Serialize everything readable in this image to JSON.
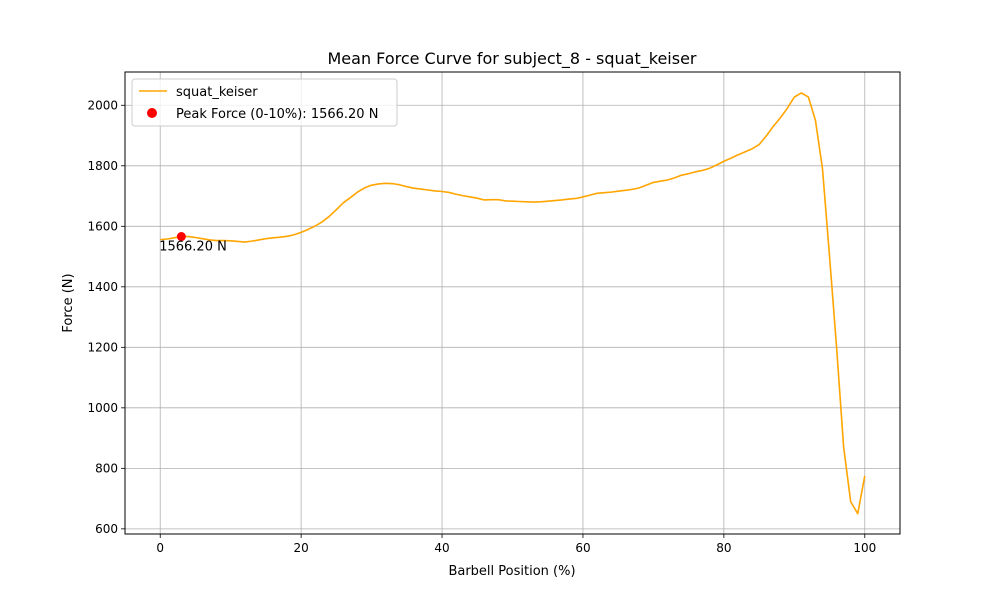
{
  "chart_data": {
    "type": "line",
    "title": "Mean Force Curve for subject_8 - squat_keiser",
    "xlabel": "Barbell Position (%)",
    "ylabel": "Force (N)",
    "xlim": [
      -5,
      105
    ],
    "ylim": [
      583,
      2110
    ],
    "xticks": [
      0,
      20,
      40,
      60,
      80,
      100
    ],
    "yticks": [
      600,
      800,
      1000,
      1200,
      1400,
      1600,
      1800,
      2000
    ],
    "grid": true,
    "legend_position": "top-left",
    "colors": {
      "line": "#ffa500",
      "peak": "#ff0000",
      "grid": "#b0b0b0"
    },
    "series": [
      {
        "name": "squat_keiser",
        "x": [
          0,
          1,
          2,
          3,
          4,
          5,
          6,
          7,
          8,
          9,
          10,
          11,
          12,
          13,
          14,
          15,
          16,
          17,
          18,
          19,
          20,
          21,
          22,
          23,
          24,
          25,
          26,
          27,
          28,
          29,
          30,
          31,
          32,
          33,
          34,
          35,
          36,
          37,
          38,
          39,
          40,
          41,
          42,
          43,
          44,
          45,
          46,
          47,
          48,
          49,
          50,
          51,
          52,
          53,
          54,
          55,
          56,
          57,
          58,
          59,
          60,
          61,
          62,
          63,
          64,
          65,
          66,
          67,
          68,
          69,
          70,
          71,
          72,
          73,
          74,
          75,
          76,
          77,
          78,
          79,
          80,
          81,
          82,
          83,
          84,
          85,
          86,
          87,
          88,
          89,
          90,
          91,
          92,
          93,
          94,
          95,
          96,
          97,
          98,
          99,
          100
        ],
        "y": [
          1556,
          1558,
          1562,
          1566,
          1566,
          1563,
          1559,
          1555,
          1553,
          1553,
          1552,
          1550,
          1548,
          1551,
          1555,
          1559,
          1562,
          1564,
          1567,
          1572,
          1580,
          1590,
          1601,
          1615,
          1633,
          1655,
          1678,
          1695,
          1713,
          1727,
          1736,
          1740,
          1742,
          1741,
          1737,
          1731,
          1726,
          1723,
          1720,
          1717,
          1715,
          1712,
          1706,
          1701,
          1697,
          1693,
          1687,
          1688,
          1688,
          1684,
          1683,
          1682,
          1681,
          1680,
          1681,
          1683,
          1685,
          1687,
          1690,
          1692,
          1697,
          1703,
          1709,
          1711,
          1713,
          1716,
          1719,
          1722,
          1727,
          1736,
          1745,
          1749,
          1753,
          1760,
          1769,
          1774,
          1780,
          1785,
          1792,
          1803,
          1815,
          1825,
          1836,
          1846,
          1856,
          1870,
          1898,
          1930,
          1958,
          1990,
          2027,
          2041,
          2027,
          1950,
          1790,
          1500,
          1200,
          870,
          690,
          650,
          775
        ]
      }
    ],
    "peak": {
      "x": 3,
      "y": 1566.2,
      "legend_label": "Peak Force (0-10%): 1566.20 N",
      "annotation": "1566.20 N"
    }
  }
}
